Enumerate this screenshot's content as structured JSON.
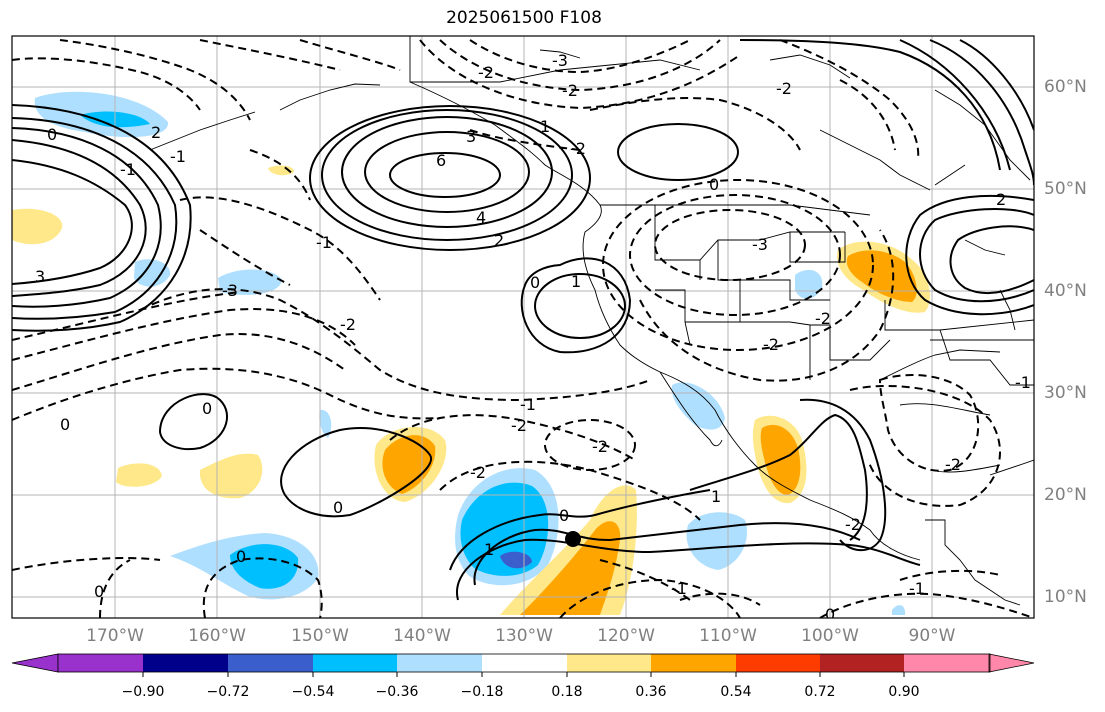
{
  "title": "2025061500 F108",
  "map": {
    "projection": "equirectangular",
    "lon_labels": [
      "170°W",
      "160°W",
      "150°W",
      "140°W",
      "130°W",
      "120°W",
      "110°W",
      "100°W",
      "90°W"
    ],
    "lat_labels": [
      "60°N",
      "50°N",
      "40°N",
      "30°N",
      "20°N",
      "10°N"
    ],
    "marker": {
      "type": "black-dot"
    },
    "line_style": {
      "positive": "solid",
      "negative": "dashed",
      "color": "#000000"
    }
  },
  "contour_labels": [
    "6",
    "4",
    "3",
    "3",
    "2",
    "2",
    "1",
    "1",
    "0",
    "0",
    "0",
    "0",
    "0",
    "-3",
    "-3",
    "-2",
    "-2",
    "-2",
    "-2",
    "-2",
    "-1",
    "1",
    "1",
    "0",
    "0",
    "0",
    "-1",
    "-3",
    "-2",
    "-1",
    "-2",
    "-1",
    "0",
    "2",
    "-2",
    "-2",
    "-1",
    "-2",
    "-2",
    "-1",
    "0",
    "-1",
    "-2"
  ],
  "colorbar": {
    "ticks": [
      "−0.90",
      "−0.72",
      "−0.54",
      "−0.36",
      "−0.18",
      "0.18",
      "0.36",
      "0.54",
      "0.72",
      "0.90"
    ],
    "colors": [
      "#9932cc",
      "#00008b",
      "#3a5fcd",
      "#00bfff",
      "#afdfff",
      "#ffffff",
      "#ffe88a",
      "#ffa500",
      "#ff3c00",
      "#b22222",
      "#ff88aa"
    ]
  }
}
